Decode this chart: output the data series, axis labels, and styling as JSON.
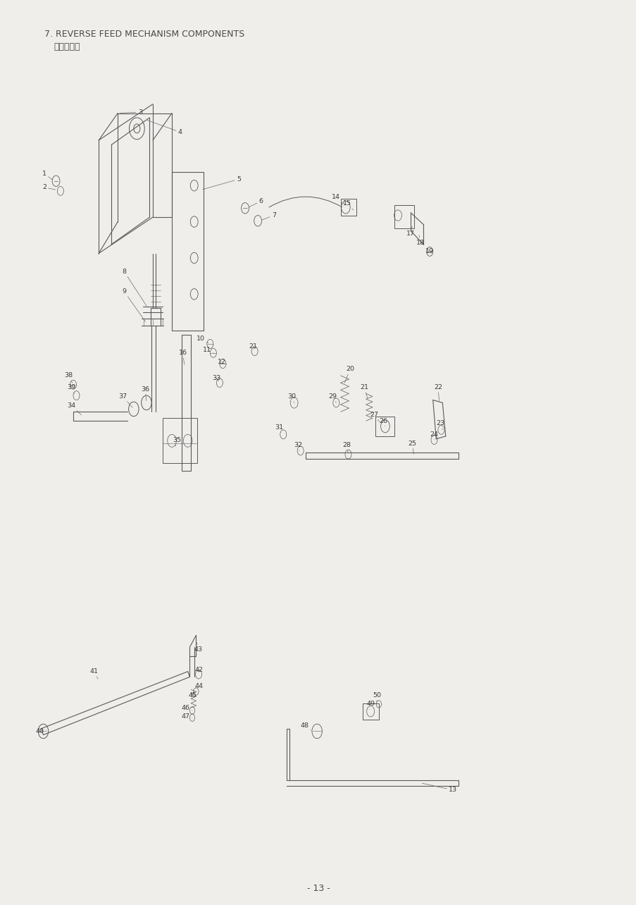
{
  "title": "7. REVERSE FEED MECHANISM COMPONENTS",
  "subtitle": "逆送り関係",
  "page_number": "- 13 -",
  "background_color": "#f0eeeb",
  "text_color": "#4a4a4a",
  "title_fontsize": 9,
  "subtitle_fontsize": 9,
  "page_fontsize": 9,
  "fig_width": 9.04,
  "fig_height": 12.84,
  "dpi": 100
}
